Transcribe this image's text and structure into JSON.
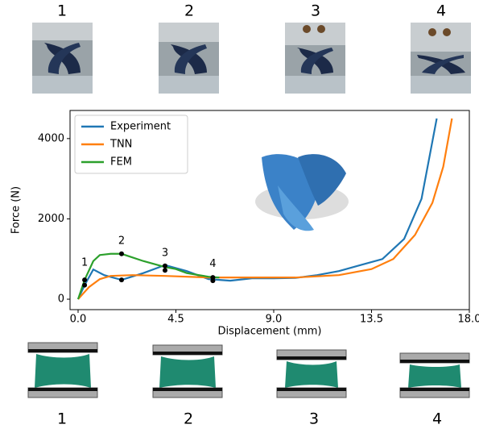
{
  "panels": {
    "top_labels": [
      "1",
      "2",
      "3",
      "4"
    ],
    "bottom_labels": [
      "1",
      "2",
      "3",
      "4"
    ]
  },
  "chart_data": {
    "type": "line",
    "xlabel": "Displacement (mm)",
    "ylabel": "Force (N)",
    "xlim": [
      -0.37,
      18.0
    ],
    "ylim": [
      -260,
      4700
    ],
    "xticks": [
      {
        "value": 0,
        "label": "0.0"
      },
      4.5,
      {
        "value": 9,
        "label": "9.0"
      },
      13.5,
      {
        "value": 18,
        "label": "18.0"
      }
    ],
    "yticks": [
      0,
      2000,
      4000
    ],
    "legend": "upper left",
    "series": [
      {
        "name": "Experiment",
        "color": "#1f77b4",
        "x": [
          0,
          0.3,
          0.7,
          1.2,
          2,
          3,
          4,
          5,
          6,
          7,
          8,
          9,
          10,
          11,
          12,
          13,
          14,
          15,
          15.8,
          16.5
        ],
        "values": [
          0,
          350,
          740,
          600,
          480,
          650,
          850,
          700,
          500,
          460,
          520,
          520,
          530,
          600,
          700,
          850,
          1000,
          1500,
          2500,
          4500
        ]
      },
      {
        "name": "TNN",
        "color": "#ff7f0e",
        "x": [
          0,
          0.5,
          1,
          1.5,
          2.5,
          4,
          6,
          8,
          10,
          12,
          13.5,
          14.5,
          15.5,
          16.3,
          16.8,
          17.2
        ],
        "values": [
          0,
          300,
          500,
          580,
          600,
          580,
          540,
          540,
          540,
          600,
          750,
          1000,
          1600,
          2400,
          3300,
          4500
        ]
      },
      {
        "name": "FEM",
        "color": "#2ca02c",
        "x": [
          0,
          0.3,
          0.7,
          1,
          1.5,
          2,
          3,
          4,
          4.5,
          5,
          6,
          6.5
        ],
        "values": [
          0,
          480,
          950,
          1100,
          1130,
          1130,
          950,
          800,
          750,
          650,
          560,
          540
        ]
      }
    ],
    "markers": {
      "x": [
        0.3,
        0.3,
        2,
        2,
        4,
        4,
        6.2,
        6.2
      ],
      "y": [
        480,
        350,
        1130,
        480,
        830,
        720,
        540,
        460
      ]
    },
    "annotations": [
      {
        "text": "1",
        "x": 0.3,
        "y": 900
      },
      {
        "text": "2",
        "x": 2,
        "y": 1450
      },
      {
        "text": "3",
        "x": 4,
        "y": 1150
      },
      {
        "text": "4",
        "x": 6.2,
        "y": 870
      }
    ]
  }
}
